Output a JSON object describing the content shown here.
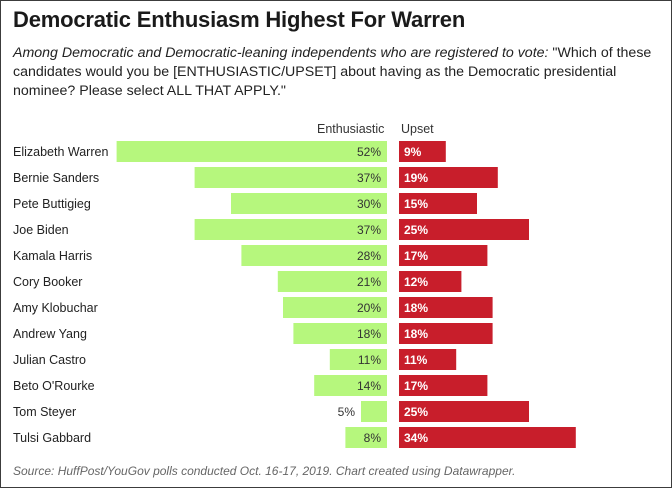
{
  "title": "Democratic Enthusiasm Highest For Warren",
  "subtitle_lead": "Among Democratic and Democratic-leaning independents who are registered to vote:",
  "subtitle_question": " \"Which of these candidates would you be [ENTHUSIASTIC/UPSET] about having as the Democratic presidential nominee? Please select ALL THAT APPLY.\"",
  "source": "Source: HuffPost/YouGov polls conducted Oct. 16-17, 2019. Chart created using Datawrapper.",
  "colors": {
    "enthusiastic": "#b6f77d",
    "upset": "#c81e2b",
    "upset_text": "#ffffff",
    "enth_text": "#333333"
  },
  "chart_data": {
    "type": "bar",
    "title": "Democratic Enthusiasm Highest For Warren",
    "categories": [
      "Elizabeth Warren",
      "Bernie Sanders",
      "Pete Buttigieg",
      "Joe Biden",
      "Kamala Harris",
      "Cory Booker",
      "Amy Klobuchar",
      "Andrew Yang",
      "Julian Castro",
      "Beto O'Rourke",
      "Tom Steyer",
      "Tulsi Gabbard"
    ],
    "series": [
      {
        "name": "Enthusiastic",
        "values": [
          52,
          37,
          30,
          37,
          28,
          21,
          20,
          18,
          11,
          14,
          5,
          8
        ],
        "labels": [
          "52%",
          "37%",
          "30%",
          "37%",
          "28%",
          "21%",
          "20%",
          "18%",
          "11%",
          "14%",
          "5%",
          "8%"
        ]
      },
      {
        "name": "Upset",
        "values": [
          9,
          19,
          15,
          25,
          17,
          12,
          18,
          18,
          11,
          17,
          25,
          34
        ],
        "labels": [
          "9%",
          "19%",
          "15%",
          "25%",
          "17%",
          "12%",
          "18%",
          "18%",
          "11%",
          "17%",
          "25%",
          "34%"
        ]
      }
    ],
    "unit": "%",
    "xlim": [
      0,
      60
    ]
  }
}
